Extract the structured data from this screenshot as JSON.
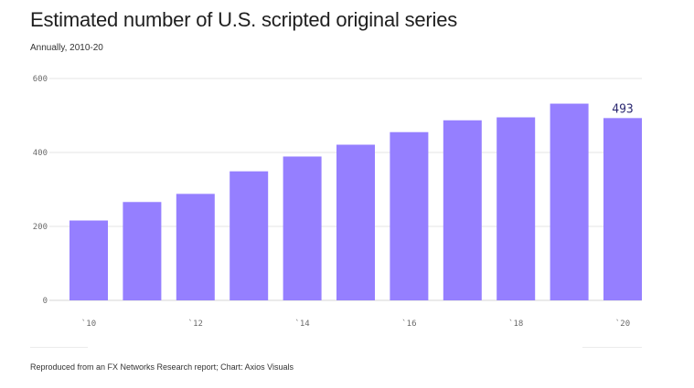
{
  "title": "Estimated number of U.S. scripted original series",
  "subtitle": "Annually, 2010-20",
  "source": "Reproduced from an FX Networks Research report; Chart: Axios Visuals",
  "colors": {
    "bar": "#957fff",
    "grid": "#e6e6e6",
    "label": "#2d2a72"
  },
  "chart_data": {
    "type": "bar",
    "title": "Estimated number of U.S. scripted original series",
    "subtitle": "Annually, 2010-20",
    "categories": [
      "2010",
      "2011",
      "2012",
      "2013",
      "2014",
      "2015",
      "2016",
      "2017",
      "2018",
      "2019",
      "2020"
    ],
    "values": [
      216,
      266,
      288,
      349,
      389,
      421,
      455,
      487,
      495,
      532,
      493
    ],
    "tick_labels_x": [
      "`10",
      "`12",
      "`14",
      "`16",
      "`18",
      "`20"
    ],
    "tick_labels_y": [
      "600",
      "400",
      "200",
      "0"
    ],
    "ylim": [
      0,
      600
    ],
    "grid": true,
    "data_labels": [
      {
        "category": "2020",
        "text": "493"
      }
    ],
    "xlabel": "",
    "ylabel": ""
  }
}
